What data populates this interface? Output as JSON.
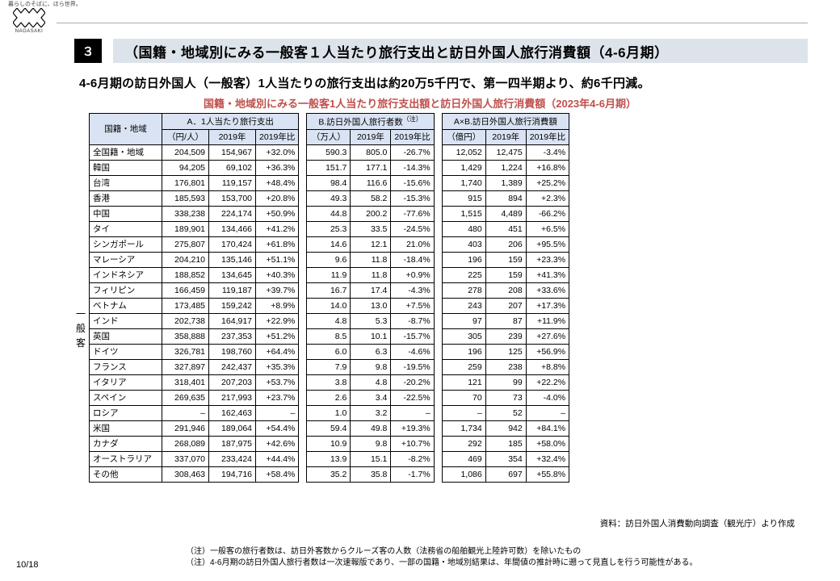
{
  "tagline": "暮らしのそばに、ほら世界。",
  "logo_label": "NAGASAKI",
  "section_number": "３",
  "title": "（国籍・地域別にみる一般客１人当たり旅行支出と訪日外国人旅行消費額（4-6月期）",
  "subtitle": "4-6月期の訪日外国人（一般客）1人当たりの旅行支出は約20万5千円で、第一四半期より、約6千円減。",
  "table_title": "国籍・地域別にみる一般客1人当たり旅行支出額と訪日外国人旅行消費額（2023年4-6月期）",
  "vertical_label": "一般客",
  "col_region": "国籍・地域",
  "groups": {
    "a": {
      "label": "A．1人当たり旅行支出",
      "unit": "（円/人）",
      "y1": "2019年",
      "y2": "2019年比"
    },
    "b": {
      "label": "B.訪日外国人旅行者数",
      "sup": "（注）",
      "unit": "（万人）",
      "y1": "2019年",
      "y2": "2019年比"
    },
    "c": {
      "label": "A×B.訪日外国人旅行消費額",
      "unit": "（億円）",
      "y1": "2019年",
      "y2": "2019年比"
    }
  },
  "rows": [
    {
      "region": "全国籍・地域",
      "a1": "204,509",
      "a2": "154,967",
      "a3": "+32.0%",
      "b1": "590.3",
      "b2": "805.0",
      "b3": "-26.7%",
      "c1": "12,052",
      "c2": "12,475",
      "c3": "-3.4%"
    },
    {
      "region": "韓国",
      "a1": "94,205",
      "a2": "69,102",
      "a3": "+36.3%",
      "b1": "151.7",
      "b2": "177.1",
      "b3": "-14.3%",
      "c1": "1,429",
      "c2": "1,224",
      "c3": "+16.8%"
    },
    {
      "region": "台湾",
      "a1": "176,801",
      "a2": "119,157",
      "a3": "+48.4%",
      "b1": "98.4",
      "b2": "116.6",
      "b3": "-15.6%",
      "c1": "1,740",
      "c2": "1,389",
      "c3": "+25.2%"
    },
    {
      "region": "香港",
      "a1": "185,593",
      "a2": "153,700",
      "a3": "+20.8%",
      "b1": "49.3",
      "b2": "58.2",
      "b3": "-15.3%",
      "c1": "915",
      "c2": "894",
      "c3": "+2.3%"
    },
    {
      "region": "中国",
      "a1": "338,238",
      "a2": "224,174",
      "a3": "+50.9%",
      "b1": "44.8",
      "b2": "200.2",
      "b3": "-77.6%",
      "c1": "1,515",
      "c2": "4,489",
      "c3": "-66.2%"
    },
    {
      "region": "タイ",
      "a1": "189,901",
      "a2": "134,466",
      "a3": "+41.2%",
      "b1": "25.3",
      "b2": "33.5",
      "b3": "-24.5%",
      "c1": "480",
      "c2": "451",
      "c3": "+6.5%"
    },
    {
      "region": "シンガポール",
      "a1": "275,807",
      "a2": "170,424",
      "a3": "+61.8%",
      "b1": "14.6",
      "b2": "12.1",
      "b3": "21.0%",
      "c1": "403",
      "c2": "206",
      "c3": "+95.5%"
    },
    {
      "region": "マレーシア",
      "a1": "204,210",
      "a2": "135,146",
      "a3": "+51.1%",
      "b1": "9.6",
      "b2": "11.8",
      "b3": "-18.4%",
      "c1": "196",
      "c2": "159",
      "c3": "+23.3%"
    },
    {
      "region": "インドネシア",
      "a1": "188,852",
      "a2": "134,645",
      "a3": "+40.3%",
      "b1": "11.9",
      "b2": "11.8",
      "b3": "+0.9%",
      "c1": "225",
      "c2": "159",
      "c3": "+41.3%"
    },
    {
      "region": "フィリピン",
      "a1": "166,459",
      "a2": "119,187",
      "a3": "+39.7%",
      "b1": "16.7",
      "b2": "17.4",
      "b3": "-4.3%",
      "c1": "278",
      "c2": "208",
      "c3": "+33.6%"
    },
    {
      "region": "ベトナム",
      "a1": "173,485",
      "a2": "159,242",
      "a3": "+8.9%",
      "b1": "14.0",
      "b2": "13.0",
      "b3": "+7.5%",
      "c1": "243",
      "c2": "207",
      "c3": "+17.3%"
    },
    {
      "region": "インド",
      "a1": "202,738",
      "a2": "164,917",
      "a3": "+22.9%",
      "b1": "4.8",
      "b2": "5.3",
      "b3": "-8.7%",
      "c1": "97",
      "c2": "87",
      "c3": "+11.9%"
    },
    {
      "region": "英国",
      "a1": "358,888",
      "a2": "237,353",
      "a3": "+51.2%",
      "b1": "8.5",
      "b2": "10.1",
      "b3": "-15.7%",
      "c1": "305",
      "c2": "239",
      "c3": "+27.6%"
    },
    {
      "region": "ドイツ",
      "a1": "326,781",
      "a2": "198,760",
      "a3": "+64.4%",
      "b1": "6.0",
      "b2": "6.3",
      "b3": "-4.6%",
      "c1": "196",
      "c2": "125",
      "c3": "+56.9%"
    },
    {
      "region": "フランス",
      "a1": "327,897",
      "a2": "242,437",
      "a3": "+35.3%",
      "b1": "7.9",
      "b2": "9.8",
      "b3": "-19.5%",
      "c1": "259",
      "c2": "238",
      "c3": "+8.8%"
    },
    {
      "region": "イタリア",
      "a1": "318,401",
      "a2": "207,203",
      "a3": "+53.7%",
      "b1": "3.8",
      "b2": "4.8",
      "b3": "-20.2%",
      "c1": "121",
      "c2": "99",
      "c3": "+22.2%"
    },
    {
      "region": "スペイン",
      "a1": "269,635",
      "a2": "217,993",
      "a3": "+23.7%",
      "b1": "2.6",
      "b2": "3.4",
      "b3": "-22.5%",
      "c1": "70",
      "c2": "73",
      "c3": "-4.0%"
    },
    {
      "region": "ロシア",
      "a1": "–",
      "a2": "162,463",
      "a3": "–",
      "b1": "1.0",
      "b2": "3.2",
      "b3": "–",
      "c1": "–",
      "c2": "52",
      "c3": "–"
    },
    {
      "region": "米国",
      "a1": "291,946",
      "a2": "189,064",
      "a3": "+54.4%",
      "b1": "59.4",
      "b2": "49.8",
      "b3": "+19.3%",
      "c1": "1,734",
      "c2": "942",
      "c3": "+84.1%"
    },
    {
      "region": "カナダ",
      "a1": "268,089",
      "a2": "187,975",
      "a3": "+42.6%",
      "b1": "10.9",
      "b2": "9.8",
      "b3": "+10.7%",
      "c1": "292",
      "c2": "185",
      "c3": "+58.0%"
    },
    {
      "region": "オーストラリア",
      "a1": "337,070",
      "a2": "233,424",
      "a3": "+44.4%",
      "b1": "13.9",
      "b2": "15.1",
      "b3": "-8.2%",
      "c1": "469",
      "c2": "354",
      "c3": "+32.4%"
    },
    {
      "region": "その他",
      "a1": "308,463",
      "a2": "194,716",
      "a3": "+58.4%",
      "b1": "35.2",
      "b2": "35.8",
      "b3": "-1.7%",
      "c1": "1,086",
      "c2": "697",
      "c3": "+55.8%"
    }
  ],
  "source": "資料：訪日外国人消費動向調査（観光庁）より作成",
  "footnotes": [
    "（注）一般客の旅行者数は、訪日外客数からクルーズ客の人数（法務省の船舶観光上陸許可数）を除いたもの",
    "（注）4-6月期の訪日外国人旅行者数は一次速報版であり、一部の国籍・地域別結果は、年間値の推計時に遡って見直しを行う可能性がある。"
  ],
  "page": "10/18",
  "colors": {
    "header_bg": "#dae3f3",
    "titlebar_bg": "#dde3ea",
    "table_title_color": "#c0504d"
  },
  "col_widths": {
    "region": 90,
    "a1": 58,
    "a2": 58,
    "a3": 50,
    "b1": 54,
    "b2": 50,
    "b3": 50,
    "c1": 54,
    "c2": 50,
    "c3": 50
  }
}
